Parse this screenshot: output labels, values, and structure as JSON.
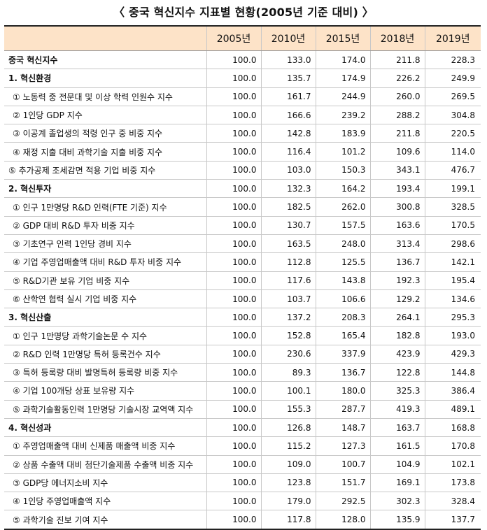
{
  "title": "〈 중국 혁신지수 지표별 현황(2005년 기준 대비) 〉",
  "columns": [
    "",
    "2005년",
    "2010년",
    "2015년",
    "2018년",
    "2019년"
  ],
  "rows": [
    {
      "label": "중국 혁신지수",
      "values": [
        "100.0",
        "133.0",
        "174.0",
        "211.8",
        "228.3"
      ],
      "bold": true,
      "sub": false
    },
    {
      "label": "1. 혁신환경",
      "values": [
        "100.0",
        "135.7",
        "174.9",
        "226.2",
        "249.9"
      ],
      "bold": true,
      "sub": false
    },
    {
      "label": "① 노동력 중 전문대 및 이상 학력 인원수 지수",
      "values": [
        "100.0",
        "161.7",
        "244.9",
        "260.0",
        "269.5"
      ],
      "bold": false,
      "sub": true
    },
    {
      "label": "② 1인당 GDP 지수",
      "values": [
        "100.0",
        "166.6",
        "239.2",
        "288.2",
        "304.8"
      ],
      "bold": false,
      "sub": true
    },
    {
      "label": "③ 이공계 졸업생의 적령 인구 중 비중 지수",
      "values": [
        "100.0",
        "142.8",
        "183.9",
        "211.8",
        "220.5"
      ],
      "bold": false,
      "sub": true
    },
    {
      "label": "④ 재정 지출 대비 과학기술 지출 비중 지수",
      "values": [
        "100.0",
        "116.4",
        "101.2",
        "109.6",
        "114.0"
      ],
      "bold": false,
      "sub": true
    },
    {
      "label": "⑤ 추가공제 조세감면 적용 기업 비중 지수",
      "values": [
        "100.0",
        "103.0",
        "150.3",
        "343.1",
        "476.7"
      ],
      "bold": false,
      "sub": false
    },
    {
      "label": "2. 혁신투자",
      "values": [
        "100.0",
        "132.3",
        "164.2",
        "193.4",
        "199.1"
      ],
      "bold": true,
      "sub": false
    },
    {
      "label": "① 인구 1만명당 R&D 인력(FTE 기준) 지수",
      "values": [
        "100.0",
        "182.5",
        "262.0",
        "300.8",
        "328.5"
      ],
      "bold": false,
      "sub": true
    },
    {
      "label": "② GDP 대비 R&D 투자 비중 지수",
      "values": [
        "100.0",
        "130.7",
        "157.5",
        "163.6",
        "170.5"
      ],
      "bold": false,
      "sub": true
    },
    {
      "label": "③ 기초연구 인력 1인당 경비 지수",
      "values": [
        "100.0",
        "163.5",
        "248.0",
        "313.4",
        "298.6"
      ],
      "bold": false,
      "sub": true
    },
    {
      "label": "④ 기업 주영업매출액 대비 R&D 투자 비중 지수",
      "values": [
        "100.0",
        "112.8",
        "125.5",
        "136.7",
        "142.1"
      ],
      "bold": false,
      "sub": true
    },
    {
      "label": "⑤ R&D기관 보유 기업 비중 지수",
      "values": [
        "100.0",
        "117.6",
        "143.8",
        "192.3",
        "195.4"
      ],
      "bold": false,
      "sub": true
    },
    {
      "label": "⑥ 산학연 협력 실시 기업 비중 지수",
      "values": [
        "100.0",
        "103.7",
        "106.6",
        "129.2",
        "134.6"
      ],
      "bold": false,
      "sub": true
    },
    {
      "label": "3. 혁신산출",
      "values": [
        "100.0",
        "137.2",
        "208.3",
        "264.1",
        "295.3"
      ],
      "bold": true,
      "sub": false
    },
    {
      "label": "① 인구 1만명당 과학기술논문 수 지수",
      "values": [
        "100.0",
        "152.8",
        "165.4",
        "182.8",
        "193.0"
      ],
      "bold": false,
      "sub": true
    },
    {
      "label": "② R&D 인력 1만명당 특허 등록건수 지수",
      "values": [
        "100.0",
        "230.6",
        "337.9",
        "423.9",
        "429.3"
      ],
      "bold": false,
      "sub": true
    },
    {
      "label": "③ 특허 등록량 대비 발명특허 등록량 비중 지수",
      "values": [
        "100.0",
        "89.3",
        "136.7",
        "122.8",
        "144.8"
      ],
      "bold": false,
      "sub": true
    },
    {
      "label": "④ 기업 100개당 상표 보유량 지수",
      "values": [
        "100.0",
        "100.1",
        "180.0",
        "325.3",
        "386.4"
      ],
      "bold": false,
      "sub": true
    },
    {
      "label": "⑤ 과학기술활동인력 1만명당 기술시장 교역액 지수",
      "values": [
        "100.0",
        "155.3",
        "287.7",
        "419.3",
        "489.1"
      ],
      "bold": false,
      "sub": true
    },
    {
      "label": "4. 혁신성과",
      "values": [
        "100.0",
        "126.8",
        "148.7",
        "163.7",
        "168.8"
      ],
      "bold": true,
      "sub": false
    },
    {
      "label": "① 주영업매출액 대비 신제품 매출액 비중 지수",
      "values": [
        "100.0",
        "115.2",
        "127.3",
        "161.5",
        "170.8"
      ],
      "bold": false,
      "sub": true
    },
    {
      "label": "② 상품 수출액 대비 첨단기술제품 수출액 비중 지수",
      "values": [
        "100.0",
        "109.0",
        "100.7",
        "104.9",
        "102.1"
      ],
      "bold": false,
      "sub": true
    },
    {
      "label": "③ GDP당 에너지소비 지수",
      "values": [
        "100.0",
        "123.8",
        "151.7",
        "169.1",
        "173.8"
      ],
      "bold": false,
      "sub": true
    },
    {
      "label": "④ 1인당 주영업매출액 지수",
      "values": [
        "100.0",
        "179.0",
        "292.5",
        "302.3",
        "328.4"
      ],
      "bold": false,
      "sub": true
    },
    {
      "label": "⑤ 과학기술 진보 기여 지수",
      "values": [
        "100.0",
        "117.8",
        "128.0",
        "135.9",
        "137.7"
      ],
      "bold": false,
      "sub": true
    }
  ]
}
